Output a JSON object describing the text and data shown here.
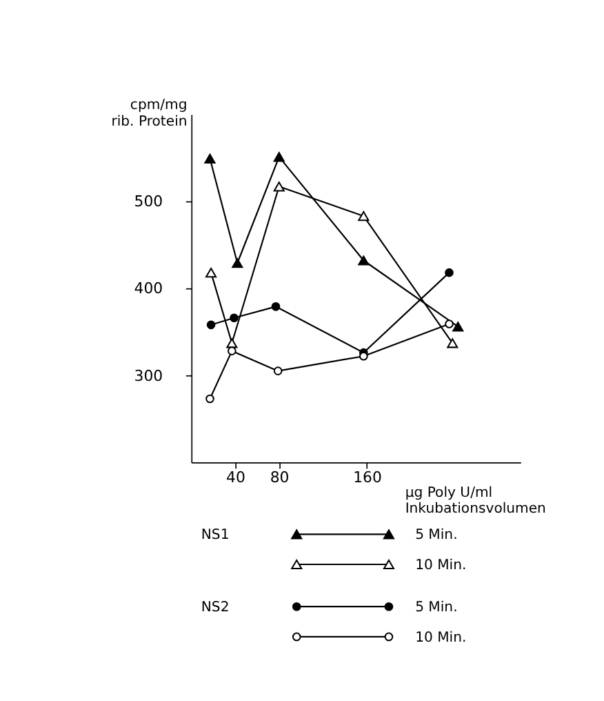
{
  "chart_data": {
    "type": "line",
    "ylabel": "cpm/mg\nrib. Protein",
    "xlabel": "µg Poly U/ml\nInkubationsvolumen",
    "xlim": [
      0,
      300
    ],
    "xticks": [
      40,
      80,
      160
    ],
    "ylim": [
      200,
      600
    ],
    "yticks": [
      300,
      400,
      500
    ],
    "grid": false,
    "legend": "bottom",
    "annotations": [
      "NS1",
      "NS2"
    ],
    "series": [
      {
        "name": "5 Min.",
        "color": "#000000",
        "marker": "triangle",
        "x": [
          17,
          42,
          80,
          157,
          243
        ],
        "values": [
          549,
          429,
          551,
          432,
          356
        ]
      },
      {
        "name": "10 Min.",
        "color": "#000000",
        "marker": "triangle",
        "x": [
          18,
          37,
          80,
          157,
          238
        ],
        "values": [
          418,
          337,
          517,
          483,
          337
        ]
      },
      {
        "name": "5 Min.",
        "color": "#000000",
        "marker": "circle",
        "x": [
          18,
          39,
          77,
          157,
          235
        ],
        "values": [
          358,
          366,
          379,
          326,
          418
        ]
      },
      {
        "name": "10 Min.",
        "color": "#000000",
        "marker": "circle",
        "x": [
          17,
          37,
          79,
          157,
          235
        ],
        "values": [
          273,
          328,
          305,
          322,
          359
        ]
      }
    ]
  }
}
